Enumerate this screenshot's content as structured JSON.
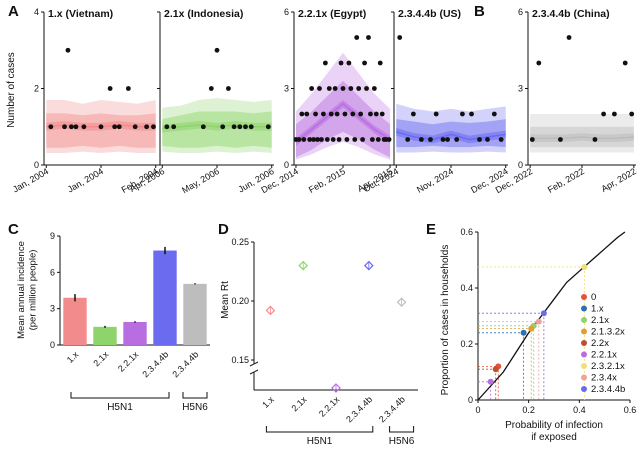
{
  "panel_letters": {
    "A": "A",
    "B": "B",
    "C": "C",
    "D": "D",
    "E": "E"
  },
  "colors": {
    "1.x": "#f28b8b",
    "2.1x": "#8fd46b",
    "2.2.1x": "#b86ee0",
    "2.3.4.4b": "#6b6bf0",
    "2.3.4.4b (China)": "#bdbdbd",
    "black": "#111111"
  },
  "chart_data": [
    {
      "panel": "A",
      "type": "scatter",
      "title": "1.x (Vietnam)",
      "ylabel": "Number of cases",
      "ylim": [
        0,
        4
      ],
      "yticks": [
        "0",
        "2",
        "4"
      ],
      "xticks": [
        "Jan, 2004",
        "Jan, 2004",
        "Feb, 2004"
      ],
      "color_key": "1.x",
      "points": [
        [
          0.06,
          1
        ],
        [
          0.18,
          1
        ],
        [
          0.21,
          3
        ],
        [
          0.24,
          1
        ],
        [
          0.28,
          1
        ],
        [
          0.35,
          1
        ],
        [
          0.5,
          1
        ],
        [
          0.58,
          2
        ],
        [
          0.62,
          1
        ],
        [
          0.66,
          1
        ],
        [
          0.74,
          2
        ],
        [
          0.8,
          1
        ],
        [
          0.9,
          1
        ],
        [
          0.96,
          1
        ]
      ],
      "band_outer": [
        1.7,
        1.7,
        1.6,
        1.7,
        1.65,
        1.6,
        1.7
      ],
      "band_mid": [
        1.35,
        1.35,
        1.3,
        1.35,
        1.3,
        1.3,
        1.35
      ],
      "band_low": [
        0.45,
        0.45,
        0.5,
        0.45,
        0.5,
        0.45,
        0.45
      ],
      "median": [
        1.0,
        1.05,
        1.0,
        1.0,
        1.05,
        1.0,
        1.0
      ]
    },
    {
      "panel": "A",
      "type": "scatter",
      "title": "2.1x (Indonesia)",
      "ylim": [
        0,
        4
      ],
      "xticks": [
        "Apr, 2006",
        "May, 2006",
        "Jun, 2006"
      ],
      "color_key": "2.1x",
      "points": [
        [
          0.06,
          1
        ],
        [
          0.12,
          1
        ],
        [
          0.38,
          1
        ],
        [
          0.45,
          2
        ],
        [
          0.5,
          3
        ],
        [
          0.55,
          1
        ],
        [
          0.6,
          2
        ],
        [
          0.65,
          1
        ],
        [
          0.7,
          1
        ],
        [
          0.75,
          1
        ],
        [
          0.8,
          1
        ],
        [
          0.95,
          1
        ]
      ],
      "band_outer": [
        1.5,
        1.55,
        1.7,
        1.75,
        1.7,
        1.65,
        1.7
      ],
      "band_mid": [
        1.2,
        1.3,
        1.4,
        1.4,
        1.4,
        1.35,
        1.4
      ],
      "band_low": [
        0.5,
        0.45,
        0.45,
        0.5,
        0.45,
        0.5,
        0.45
      ],
      "median": [
        0.95,
        1.0,
        1.05,
        1.0,
        1.05,
        1.0,
        1.0
      ]
    },
    {
      "panel": "A",
      "type": "scatter",
      "title": "2.2.1x (Egypt)",
      "ylim": [
        0,
        6
      ],
      "yticks": [
        "0",
        "3",
        "6"
      ],
      "xticks": [
        "Dec, 2014",
        "Feb, 2015",
        "Apr, 2015"
      ],
      "color_key": "2.2.1x",
      "points": [
        [
          0.02,
          1
        ],
        [
          0.05,
          1
        ],
        [
          0.08,
          2
        ],
        [
          0.1,
          1
        ],
        [
          0.13,
          2
        ],
        [
          0.16,
          1
        ],
        [
          0.18,
          3
        ],
        [
          0.2,
          1
        ],
        [
          0.22,
          2
        ],
        [
          0.24,
          1
        ],
        [
          0.26,
          3
        ],
        [
          0.28,
          1
        ],
        [
          0.3,
          2
        ],
        [
          0.32,
          4
        ],
        [
          0.34,
          1
        ],
        [
          0.36,
          3
        ],
        [
          0.38,
          2
        ],
        [
          0.4,
          1
        ],
        [
          0.42,
          3
        ],
        [
          0.44,
          2
        ],
        [
          0.46,
          1
        ],
        [
          0.48,
          4
        ],
        [
          0.5,
          3
        ],
        [
          0.52,
          2
        ],
        [
          0.54,
          1
        ],
        [
          0.56,
          4
        ],
        [
          0.58,
          3
        ],
        [
          0.6,
          2
        ],
        [
          0.62,
          1
        ],
        [
          0.64,
          5
        ],
        [
          0.66,
          3
        ],
        [
          0.68,
          2
        ],
        [
          0.7,
          1
        ],
        [
          0.72,
          4
        ],
        [
          0.74,
          3
        ],
        [
          0.76,
          5
        ],
        [
          0.78,
          2
        ],
        [
          0.8,
          1
        ],
        [
          0.82,
          3
        ],
        [
          0.84,
          2
        ],
        [
          0.86,
          1
        ],
        [
          0.88,
          4
        ],
        [
          0.9,
          2
        ],
        [
          0.92,
          1
        ],
        [
          0.94,
          1
        ],
        [
          0.97,
          1
        ]
      ],
      "band_outer": [
        2.1,
        2.8,
        3.6,
        4.4,
        3.6,
        2.8,
        2.2
      ],
      "band_mid": [
        1.6,
        2.1,
        2.7,
        3.3,
        2.7,
        2.1,
        1.6
      ],
      "band_low": [
        0.3,
        0.6,
        1.0,
        1.3,
        1.0,
        0.6,
        0.3
      ],
      "median": [
        0.9,
        1.4,
        1.9,
        2.4,
        1.9,
        1.4,
        1.0
      ]
    },
    {
      "panel": "A",
      "type": "scatter",
      "title": "2.3.4.4b (US)",
      "ylim": [
        0,
        6
      ],
      "xticks": [
        "Oct, 2024",
        "Nov, 2024",
        "Dec, 2024"
      ],
      "color_key": "2.3.4.4b",
      "points": [
        [
          0.05,
          5
        ],
        [
          0.12,
          1
        ],
        [
          0.17,
          2
        ],
        [
          0.24,
          1
        ],
        [
          0.32,
          1
        ],
        [
          0.37,
          2
        ],
        [
          0.43,
          1
        ],
        [
          0.47,
          1
        ],
        [
          0.55,
          1
        ],
        [
          0.6,
          2
        ],
        [
          0.68,
          2
        ],
        [
          0.75,
          1
        ],
        [
          0.82,
          1
        ],
        [
          0.88,
          2
        ],
        [
          0.94,
          1
        ]
      ],
      "band_outer": [
        2.4,
        2.2,
        2.1,
        2.2,
        2.1,
        2.2,
        2.3
      ],
      "band_mid": [
        1.8,
        1.7,
        1.6,
        1.7,
        1.65,
        1.7,
        1.8
      ],
      "band_low": [
        0.7,
        0.7,
        0.75,
        0.7,
        0.7,
        0.75,
        0.7
      ],
      "median": [
        1.3,
        1.1,
        1.0,
        1.2,
        1.0,
        1.1,
        1.2
      ]
    },
    {
      "panel": "B",
      "type": "scatter",
      "title": "2.3.4.4b (China)",
      "ylim": [
        0,
        6
      ],
      "yticks": [
        "0",
        "3",
        "6"
      ],
      "xticks": [
        "Dec, 2022",
        "Feb, 2022",
        "Apr, 2022"
      ],
      "color_key": "2.3.4.4b (China)",
      "points": [
        [
          0.04,
          1
        ],
        [
          0.1,
          4
        ],
        [
          0.3,
          1
        ],
        [
          0.38,
          5
        ],
        [
          0.62,
          1
        ],
        [
          0.7,
          2
        ],
        [
          0.8,
          2
        ],
        [
          0.9,
          4
        ],
        [
          0.96,
          2
        ]
      ],
      "band_outer": [
        2.0,
        2.0,
        2.0,
        2.0,
        2.0,
        2.0,
        2.0
      ],
      "band_mid": [
        1.5,
        1.5,
        1.5,
        1.5,
        1.5,
        1.5,
        1.5
      ],
      "band_low": [
        0.7,
        0.7,
        0.7,
        0.7,
        0.7,
        0.7,
        0.7
      ],
      "median": [
        1.05,
        1.05,
        1.05,
        1.1,
        1.05,
        1.05,
        1.1
      ]
    },
    {
      "panel": "C",
      "type": "bar",
      "ylabel": "Mean annual incidence\n(per million people)",
      "ylim": [
        0,
        9
      ],
      "yticks": [
        "0",
        "3",
        "6",
        "9"
      ],
      "categories": [
        "1.x",
        "2.1x",
        "2.2.1x",
        "2.3.4.4b",
        "2.3.4.4b"
      ],
      "values": [
        3.9,
        1.5,
        1.9,
        7.8,
        5.05
      ],
      "errors": [
        0.3,
        0.08,
        0.06,
        0.3,
        0.05
      ],
      "color_keys": [
        "1.x",
        "2.1x",
        "2.2.1x",
        "2.3.4.4b",
        "2.3.4.4b (China)"
      ],
      "groups": [
        {
          "label": "H5N1",
          "members": [
            0,
            1,
            2,
            3
          ]
        },
        {
          "label": "H5N6",
          "members": [
            4
          ]
        }
      ]
    },
    {
      "panel": "D",
      "type": "scatter",
      "ylabel": "Mean Rt",
      "ylim": [
        0.15,
        0.25
      ],
      "yticks": [
        "0.15",
        "0.20",
        "0.25"
      ],
      "categories": [
        "1.x",
        "2.1x",
        "2.2.1x",
        "2.3.4.4b",
        "2.3.4.4b"
      ],
      "values": [
        0.192,
        0.23,
        0.0,
        0.23,
        0.199
      ],
      "color_keys": [
        "1.x",
        "2.1x",
        "2.2.1x",
        "2.3.4.4b",
        "2.3.4.4b (China)"
      ],
      "axis_break": true,
      "groups": [
        {
          "label": "H5N1",
          "members": [
            0,
            1,
            2,
            3
          ]
        },
        {
          "label": "H5N6",
          "members": [
            4
          ]
        }
      ]
    },
    {
      "panel": "E",
      "type": "line",
      "xlabel": "Probability of infection\nif exposed",
      "ylabel": "Proportion of cases in households",
      "xlim": [
        0,
        0.6
      ],
      "ylim": [
        0,
        0.6
      ],
      "xticks": [
        "0",
        "0.2",
        "0.4",
        "0.6"
      ],
      "yticks": [
        "0",
        "0.2",
        "0.4",
        "0.6"
      ],
      "curve": [
        [
          0,
          0
        ],
        [
          0.05,
          0.05
        ],
        [
          0.1,
          0.1
        ],
        [
          0.15,
          0.17
        ],
        [
          0.2,
          0.24
        ],
        [
          0.25,
          0.3
        ],
        [
          0.3,
          0.36
        ],
        [
          0.35,
          0.42
        ],
        [
          0.4,
          0.46
        ],
        [
          0.45,
          0.5
        ],
        [
          0.5,
          0.54
        ],
        [
          0.55,
          0.58
        ],
        [
          0.58,
          0.6
        ]
      ],
      "legend": [
        {
          "label": "0",
          "color": "#e8503a",
          "x": 0.08,
          "y": 0.12
        },
        {
          "label": "1.x",
          "color": "#2f6fb0",
          "x": 0.18,
          "y": 0.24
        },
        {
          "label": "2.1x",
          "color": "#8fd46b",
          "x": 0.22,
          "y": 0.265
        },
        {
          "label": "2.1.3.2x",
          "color": "#e0a030",
          "x": 0.21,
          "y": 0.255
        },
        {
          "label": "2.2x",
          "color": "#c0502a",
          "x": 0.07,
          "y": 0.11
        },
        {
          "label": "2.2.1x",
          "color": "#b86ee0",
          "x": 0.05,
          "y": 0.065
        },
        {
          "label": "2.3.2.1x",
          "color": "#f0e070",
          "x": 0.42,
          "y": 0.475
        },
        {
          "label": "2.3.4x",
          "color": "#f0a0a0",
          "x": 0.24,
          "y": 0.28
        },
        {
          "label": "2.3.4.4b",
          "color": "#6b6bf0",
          "x": 0.26,
          "y": 0.31
        }
      ]
    }
  ]
}
